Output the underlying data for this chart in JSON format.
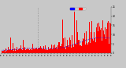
{
  "background_color": "#c8c8c8",
  "plot_bg_color": "#c8c8c8",
  "bar_color": "#ff0000",
  "line_color": "#0000ff",
  "n_points": 1440,
  "y_max": 25,
  "y_min": 0,
  "legend_actual_color": "#ff0000",
  "legend_median_color": "#0000ff",
  "grid_color": "#888888",
  "num_vertical_grids": 3,
  "yticks": [
    0,
    5,
    10,
    15,
    20,
    25
  ],
  "seed": 17
}
